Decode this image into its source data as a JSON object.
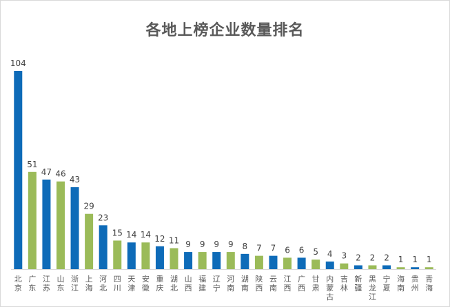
{
  "chart_data": {
    "type": "bar",
    "title": "各地上榜企业数量排名",
    "xlabel": "",
    "ylabel": "",
    "ylim": [
      0,
      104
    ],
    "grid": false,
    "legend": "none",
    "categories": [
      "北京",
      "广东",
      "江苏",
      "山东",
      "浙江",
      "上海",
      "河北",
      "四川",
      "天津",
      "安徽",
      "重庆",
      "湖北",
      "山西",
      "福建",
      "辽宁",
      "河南",
      "湖南",
      "陕西",
      "云南",
      "江西",
      "广西",
      "甘肃",
      "内蒙古",
      "吉林",
      "新疆",
      "黑龙江",
      "宁夏",
      "海南",
      "贵州",
      "青海"
    ],
    "values": [
      104,
      51,
      47,
      46,
      43,
      29,
      23,
      15,
      14,
      14,
      12,
      11,
      9,
      9,
      9,
      9,
      8,
      7,
      7,
      6,
      6,
      5,
      4,
      3,
      2,
      2,
      2,
      1,
      1,
      1
    ],
    "bar_colors": [
      "#0e6bb8",
      "#9bbb59",
      "#0e6bb8",
      "#9bbb59",
      "#0e6bb8",
      "#9bbb59",
      "#0e6bb8",
      "#9bbb59",
      "#0e6bb8",
      "#9bbb59",
      "#0e6bb8",
      "#9bbb59",
      "#0e6bb8",
      "#9bbb59",
      "#0e6bb8",
      "#9bbb59",
      "#0e6bb8",
      "#9bbb59",
      "#0e6bb8",
      "#9bbb59",
      "#0e6bb8",
      "#9bbb59",
      "#0e6bb8",
      "#9bbb59",
      "#0e6bb8",
      "#9bbb59",
      "#0e6bb8",
      "#9bbb59",
      "#0e6bb8",
      "#9bbb59"
    ]
  }
}
